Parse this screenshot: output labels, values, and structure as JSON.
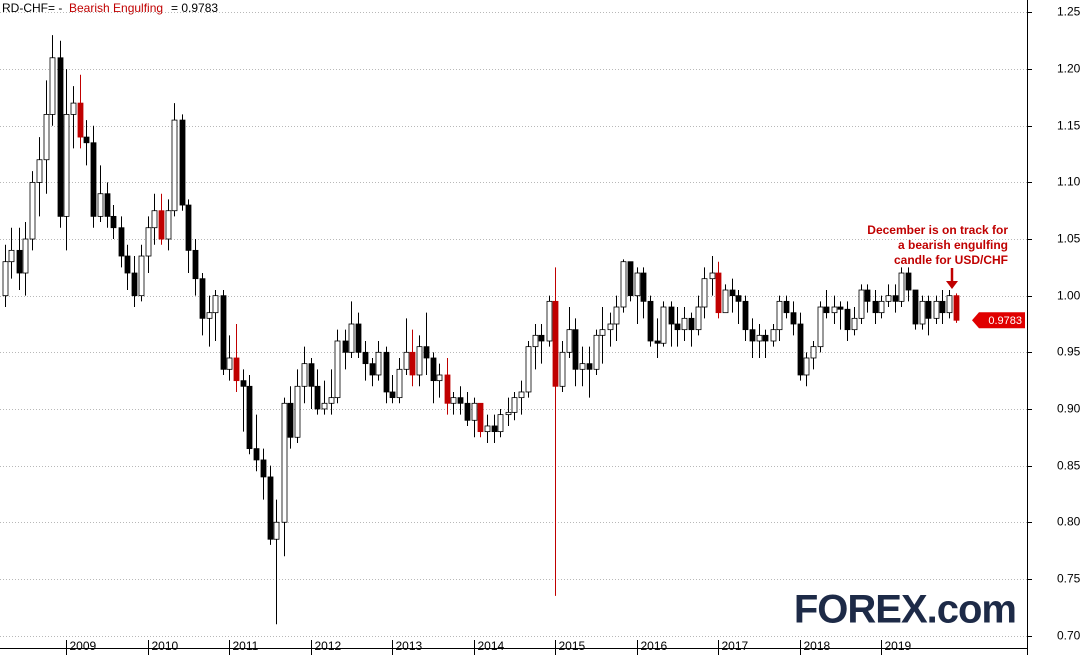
{
  "chart_data": {
    "type": "candlestick",
    "title": "RD-CHF= -",
    "indicator": "Bearish Engulfing",
    "indicator_value": "= 0.9783",
    "annotation": [
      "December is on track for",
      "a bearish engulfing",
      "candle for USD/CHF"
    ],
    "logo": "FOREX.com",
    "up_color": "#ffffff",
    "down_color": "#000000",
    "highlight_color": "#c00000",
    "highlight": [
      11,
      23,
      34,
      60,
      65,
      70,
      81,
      105,
      140
    ],
    "grid": true,
    "xlim": [
      2008.19,
      2020.79
    ],
    "xticks": [
      2009,
      2010,
      2011,
      2012,
      2013,
      2014,
      2015,
      2016,
      2017,
      2018,
      2019
    ],
    "ylim": [
      0.689,
      1.261
    ],
    "yticks": [
      {
        "value": 0.7,
        "label": "0.70"
      },
      0.75,
      {
        "value": 0.8,
        "label": "0.80"
      },
      0.85,
      {
        "value": 0.9,
        "label": "0.90"
      },
      0.95,
      {
        "value": 1.0,
        "label": "1.00"
      },
      1.05,
      {
        "value": 1.1,
        "label": "1.10"
      },
      1.15,
      {
        "value": 1.2,
        "label": "1.20"
      },
      1.25
    ],
    "x": [
      2008.25,
      2008.33,
      2008.42,
      2008.5,
      2008.58,
      2008.67,
      2008.75,
      2008.83,
      2008.92,
      2009.0,
      2009.08,
      2009.17,
      2009.25,
      2009.33,
      2009.42,
      2009.5,
      2009.58,
      2009.67,
      2009.75,
      2009.83,
      2009.92,
      2010.0,
      2010.08,
      2010.17,
      2010.25,
      2010.33,
      2010.42,
      2010.5,
      2010.58,
      2010.67,
      2010.75,
      2010.83,
      2010.92,
      2011.0,
      2011.08,
      2011.17,
      2011.25,
      2011.33,
      2011.42,
      2011.5,
      2011.58,
      2011.67,
      2011.75,
      2011.83,
      2011.92,
      2012.0,
      2012.08,
      2012.17,
      2012.25,
      2012.33,
      2012.42,
      2012.5,
      2012.58,
      2012.67,
      2012.75,
      2012.83,
      2012.92,
      2013.0,
      2013.08,
      2013.17,
      2013.25,
      2013.33,
      2013.42,
      2013.5,
      2013.58,
      2013.67,
      2013.75,
      2013.83,
      2013.92,
      2014.0,
      2014.08,
      2014.17,
      2014.25,
      2014.33,
      2014.42,
      2014.5,
      2014.58,
      2014.67,
      2014.75,
      2014.83,
      2014.92,
      2015.0,
      2015.08,
      2015.17,
      2015.25,
      2015.33,
      2015.42,
      2015.5,
      2015.58,
      2015.67,
      2015.75,
      2015.83,
      2015.92,
      2016.0,
      2016.08,
      2016.17,
      2016.25,
      2016.33,
      2016.42,
      2016.5,
      2016.58,
      2016.67,
      2016.75,
      2016.83,
      2016.92,
      2017.0,
      2017.08,
      2017.17,
      2017.25,
      2017.33,
      2017.42,
      2017.5,
      2017.58,
      2017.67,
      2017.75,
      2017.83,
      2017.92,
      2018.0,
      2018.08,
      2018.17,
      2018.25,
      2018.33,
      2018.42,
      2018.5,
      2018.58,
      2018.67,
      2018.75,
      2018.83,
      2018.92,
      2019.0,
      2019.08,
      2019.17,
      2019.25,
      2019.33,
      2019.42,
      2019.5,
      2019.58,
      2019.67,
      2019.75,
      2019.83,
      2019.92
    ],
    "open": [
      1.0,
      1.03,
      1.04,
      1.02,
      1.05,
      1.1,
      1.12,
      1.16,
      1.21,
      1.07,
      1.16,
      1.17,
      1.14,
      1.135,
      1.07,
      1.09,
      1.07,
      1.06,
      1.035,
      1.02,
      1.0,
      1.035,
      1.06,
      1.075,
      1.05,
      1.075,
      1.155,
      1.08,
      1.04,
      1.015,
      0.98,
      0.985,
      1.0,
      0.935,
      0.945,
      0.925,
      0.92,
      0.865,
      0.855,
      0.84,
      0.785,
      0.8,
      0.905,
      0.875,
      0.92,
      0.94,
      0.92,
      0.9,
      0.905,
      0.91,
      0.96,
      0.95,
      0.975,
      0.95,
      0.94,
      0.93,
      0.95,
      0.915,
      0.91,
      0.935,
      0.95,
      0.93,
      0.955,
      0.945,
      0.925,
      0.93,
      0.905,
      0.91,
      0.905,
      0.89,
      0.905,
      0.88,
      0.885,
      0.88,
      0.895,
      0.897,
      0.91,
      0.915,
      0.955,
      0.965,
      0.96,
      0.995,
      0.92,
      0.95,
      0.97,
      0.935,
      0.94,
      0.935,
      0.965,
      0.97,
      0.975,
      0.99,
      1.03,
      1.0,
      1.02,
      0.995,
      0.96,
      0.958,
      0.99,
      0.975,
      0.97,
      0.98,
      0.97,
      0.99,
      1.015,
      1.02,
      0.985,
      1.005,
      1.0,
      0.995,
      0.97,
      0.96,
      0.965,
      0.96,
      0.97,
      0.995,
      0.985,
      0.975,
      0.93,
      0.945,
      0.955,
      0.99,
      0.985,
      0.99,
      0.988,
      0.97,
      0.98,
      1.005,
      0.995,
      0.985,
      0.995,
      1.0,
      0.995,
      1.02,
      1.005,
      0.975,
      0.995,
      0.98,
      0.995,
      0.985,
      1.0
    ],
    "high": [
      1.045,
      1.06,
      1.06,
      1.065,
      1.11,
      1.14,
      1.19,
      1.23,
      1.225,
      1.2,
      1.185,
      1.195,
      1.155,
      1.15,
      1.115,
      1.1,
      1.08,
      1.07,
      1.045,
      1.035,
      1.045,
      1.07,
      1.09,
      1.09,
      1.085,
      1.17,
      1.16,
      1.085,
      1.05,
      1.02,
      1.0,
      1.005,
      1.005,
      0.965,
      0.975,
      0.935,
      0.93,
      0.895,
      0.865,
      0.85,
      0.82,
      0.91,
      0.92,
      0.935,
      0.955,
      0.945,
      0.935,
      0.925,
      0.935,
      0.97,
      0.97,
      0.995,
      0.985,
      0.96,
      0.945,
      0.96,
      0.955,
      0.93,
      0.945,
      0.98,
      0.97,
      0.965,
      0.985,
      0.95,
      0.94,
      0.945,
      0.915,
      0.92,
      0.915,
      0.91,
      0.905,
      0.895,
      0.895,
      0.9,
      0.91,
      0.915,
      0.925,
      0.96,
      0.975,
      0.975,
      1.0,
      1.025,
      0.96,
      0.99,
      0.98,
      0.955,
      0.955,
      0.97,
      0.99,
      0.985,
      1.0,
      1.032,
      1.03,
      1.025,
      1.025,
      1.0,
      0.98,
      0.995,
      0.995,
      0.99,
      0.99,
      0.985,
      1.0,
      1.025,
      1.035,
      1.03,
      1.01,
      1.015,
      1.005,
      1.0,
      0.98,
      0.975,
      0.97,
      0.975,
      1.0,
      1.0,
      0.995,
      0.985,
      0.95,
      0.96,
      0.995,
      1.005,
      1.0,
      0.995,
      0.995,
      0.99,
      1.01,
      1.01,
      1.005,
      1.0,
      1.01,
      1.01,
      1.025,
      1.025,
      1.005,
      1.0,
      1.0,
      1.0,
      1.005,
      1.005,
      1.002
    ],
    "low": [
      0.99,
      1.015,
      1.005,
      1.0,
      1.04,
      1.07,
      1.09,
      1.15,
      1.06,
      1.04,
      1.13,
      1.13,
      1.115,
      1.06,
      1.065,
      1.06,
      1.05,
      1.025,
      1.005,
      0.99,
      0.995,
      1.02,
      1.045,
      1.045,
      1.04,
      1.07,
      1.075,
      1.02,
      1.0,
      0.965,
      0.955,
      0.96,
      0.93,
      0.925,
      0.915,
      0.88,
      0.86,
      0.845,
      0.82,
      0.78,
      0.71,
      0.77,
      0.865,
      0.87,
      0.905,
      0.9,
      0.895,
      0.895,
      0.895,
      0.905,
      0.935,
      0.945,
      0.945,
      0.925,
      0.92,
      0.925,
      0.905,
      0.905,
      0.905,
      0.93,
      0.92,
      0.92,
      0.93,
      0.905,
      0.91,
      0.895,
      0.895,
      0.895,
      0.885,
      0.875,
      0.875,
      0.87,
      0.87,
      0.875,
      0.885,
      0.89,
      0.895,
      0.91,
      0.935,
      0.94,
      0.955,
      0.735,
      0.915,
      0.945,
      0.92,
      0.92,
      0.91,
      0.93,
      0.94,
      0.955,
      0.96,
      0.985,
      0.995,
      0.975,
      0.98,
      0.955,
      0.945,
      0.955,
      0.955,
      0.955,
      0.96,
      0.955,
      0.965,
      0.98,
      1.0,
      0.98,
      0.985,
      0.985,
      0.975,
      0.96,
      0.945,
      0.945,
      0.945,
      0.955,
      0.96,
      0.98,
      0.965,
      0.925,
      0.92,
      0.935,
      0.95,
      0.98,
      0.975,
      0.97,
      0.96,
      0.965,
      0.975,
      0.985,
      0.975,
      0.98,
      0.99,
      0.985,
      0.99,
      0.995,
      0.97,
      0.97,
      0.965,
      0.975,
      0.975,
      0.98,
      0.976
    ],
    "close": [
      1.03,
      1.04,
      1.02,
      1.05,
      1.1,
      1.12,
      1.16,
      1.21,
      1.07,
      1.16,
      1.17,
      1.14,
      1.135,
      1.07,
      1.09,
      1.07,
      1.06,
      1.035,
      1.02,
      1.0,
      1.035,
      1.06,
      1.075,
      1.05,
      1.075,
      1.155,
      1.08,
      1.04,
      1.015,
      0.98,
      0.985,
      1.0,
      0.935,
      0.945,
      0.925,
      0.92,
      0.865,
      0.855,
      0.84,
      0.785,
      0.8,
      0.905,
      0.875,
      0.92,
      0.94,
      0.92,
      0.9,
      0.905,
      0.91,
      0.96,
      0.95,
      0.975,
      0.95,
      0.94,
      0.93,
      0.95,
      0.915,
      0.91,
      0.935,
      0.95,
      0.93,
      0.955,
      0.945,
      0.925,
      0.93,
      0.905,
      0.91,
      0.905,
      0.89,
      0.905,
      0.88,
      0.885,
      0.88,
      0.895,
      0.897,
      0.91,
      0.915,
      0.955,
      0.965,
      0.96,
      0.995,
      0.92,
      0.95,
      0.97,
      0.935,
      0.94,
      0.935,
      0.965,
      0.97,
      0.975,
      0.99,
      1.03,
      1.0,
      1.02,
      0.995,
      0.96,
      0.958,
      0.99,
      0.975,
      0.97,
      0.98,
      0.97,
      0.99,
      1.015,
      1.02,
      0.985,
      1.005,
      1.0,
      0.995,
      0.97,
      0.96,
      0.965,
      0.96,
      0.97,
      0.995,
      0.985,
      0.975,
      0.93,
      0.945,
      0.955,
      0.99,
      0.985,
      0.99,
      0.988,
      0.97,
      0.98,
      1.005,
      0.995,
      0.985,
      0.995,
      1.0,
      0.995,
      1.02,
      1.005,
      0.975,
      0.995,
      0.98,
      0.995,
      0.985,
      1.0,
      0.9783
    ]
  }
}
